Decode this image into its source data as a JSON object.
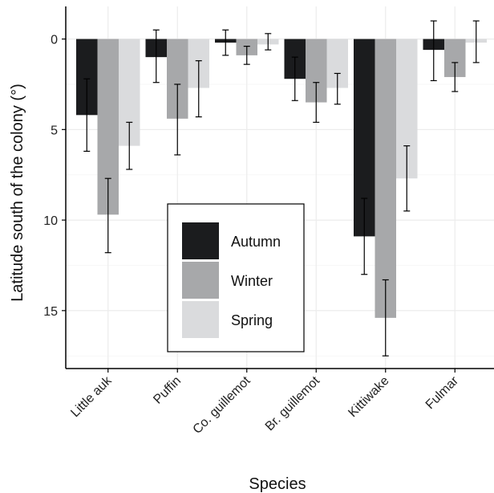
{
  "chart_data": {
    "type": "bar",
    "title": "",
    "xlabel": "Species",
    "ylabel": "Latitude south of the colony (°)",
    "y_axis_inverted": true,
    "ylim": [
      -1.8,
      18.2
    ],
    "yticks": [
      0,
      5,
      10,
      15
    ],
    "grid": true,
    "legend_position": "bottom-center",
    "categories": [
      "Little auk",
      "Puffin",
      "Co. guillemot",
      "Br. guillemot",
      "Kittiwake",
      "Fulmar"
    ],
    "series": [
      {
        "name": "Autumn",
        "color": "#1b1c1e",
        "values": [
          4.2,
          1.0,
          0.2,
          2.2,
          10.9,
          0.6
        ],
        "error_low": [
          6.2,
          2.4,
          0.9,
          3.4,
          13.0,
          2.3
        ],
        "error_high": [
          2.2,
          -0.5,
          -0.5,
          1.0,
          8.8,
          -1.0
        ]
      },
      {
        "name": "Winter",
        "color": "#a7a8aa",
        "values": [
          9.7,
          4.4,
          0.9,
          3.5,
          15.4,
          2.1
        ],
        "error_low": [
          11.8,
          6.4,
          1.4,
          4.6,
          17.5,
          2.9
        ],
        "error_high": [
          7.7,
          2.5,
          0.4,
          2.4,
          13.3,
          1.3
        ]
      },
      {
        "name": "Spring",
        "color": "#dadbdd",
        "values": [
          5.9,
          2.7,
          0.3,
          2.7,
          7.7,
          0.2
        ],
        "error_low": [
          7.2,
          4.3,
          0.6,
          3.6,
          9.5,
          1.3
        ],
        "error_high": [
          4.6,
          1.2,
          -0.3,
          1.9,
          5.9,
          -1.0
        ]
      }
    ]
  }
}
